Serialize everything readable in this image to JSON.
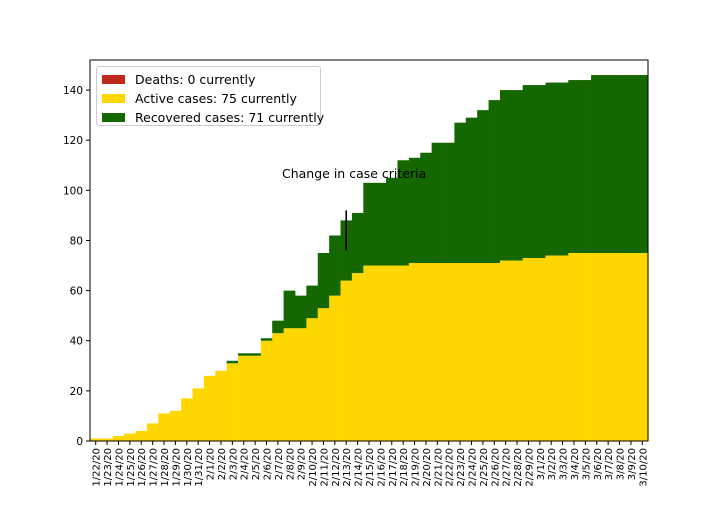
{
  "chart_data": {
    "type": "bar",
    "stacked": true,
    "categories": [
      "1/22/20",
      "1/23/20",
      "1/24/20",
      "1/25/20",
      "1/26/20",
      "1/27/20",
      "1/28/20",
      "1/29/20",
      "1/30/20",
      "1/31/20",
      "2/1/20",
      "2/2/20",
      "2/3/20",
      "2/4/20",
      "2/5/20",
      "2/6/20",
      "2/7/20",
      "2/8/20",
      "2/9/20",
      "2/10/20",
      "2/11/20",
      "2/12/20",
      "2/13/20",
      "2/14/20",
      "2/15/20",
      "2/16/20",
      "2/17/20",
      "2/18/20",
      "2/19/20",
      "2/20/20",
      "2/21/20",
      "2/22/20",
      "2/23/20",
      "2/24/20",
      "2/25/20",
      "2/26/20",
      "2/27/20",
      "2/28/20",
      "2/29/20",
      "3/1/20",
      "3/2/20",
      "3/3/20",
      "3/4/20",
      "3/5/20",
      "3/6/20",
      "3/7/20",
      "3/8/20",
      "3/9/20",
      "3/10/20"
    ],
    "series": [
      {
        "name": "Deaths: 0 currently",
        "color": "#c0281a",
        "values": [
          0,
          0,
          0,
          0,
          0,
          0,
          0,
          0,
          0,
          0,
          0,
          0,
          0,
          0,
          0,
          0,
          0,
          0,
          0,
          0,
          0,
          0,
          0,
          0,
          0,
          0,
          0,
          0,
          0,
          0,
          0,
          0,
          0,
          0,
          0,
          0,
          0,
          0,
          0,
          0,
          0,
          0,
          0,
          0,
          0,
          0,
          0,
          0,
          0
        ]
      },
      {
        "name": "Active cases: 75 currently",
        "color": "#ffd700",
        "values": [
          1,
          1,
          2,
          3,
          4,
          7,
          11,
          12,
          17,
          21,
          26,
          28,
          31,
          34,
          34,
          40,
          43,
          45,
          45,
          49,
          53,
          58,
          64,
          67,
          70,
          70,
          70,
          70,
          71,
          71,
          71,
          71,
          71,
          71,
          71,
          71,
          72,
          72,
          73,
          73,
          74,
          74,
          75,
          75,
          75,
          75,
          75,
          75,
          75
        ]
      },
      {
        "name": "Recovered cases: 71 currently",
        "color": "#156800",
        "values": [
          0,
          0,
          0,
          0,
          0,
          0,
          0,
          0,
          0,
          0,
          0,
          0,
          1,
          1,
          1,
          1,
          5,
          15,
          13,
          13,
          22,
          24,
          24,
          24,
          33,
          33,
          35,
          42,
          42,
          44,
          48,
          48,
          56,
          58,
          61,
          65,
          68,
          68,
          69,
          69,
          69,
          69,
          69,
          69,
          71,
          71,
          71,
          71,
          71
        ]
      }
    ],
    "ylim": [
      0,
      152
    ],
    "yticks": [
      "0",
      "20",
      "40",
      "60",
      "80",
      "100",
      "120",
      "140"
    ],
    "legend_position": "top-left",
    "annotation": {
      "text": "Change in case criteria",
      "x": "2/13/20"
    },
    "grid": false
  }
}
